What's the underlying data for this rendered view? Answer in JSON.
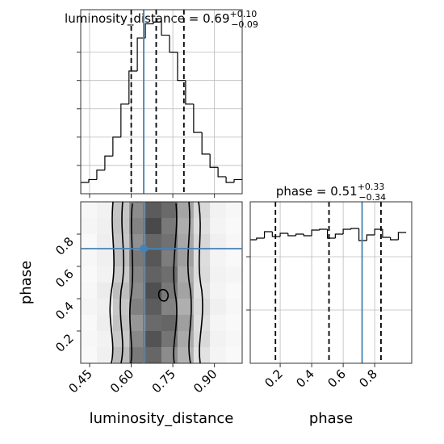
{
  "chart_data": [
    {
      "type": "histogram",
      "title": "luminosity_distance = 0.69",
      "title_sup": "+0.10",
      "title_sub": "−0.09",
      "bins": [
        0.418,
        0.447,
        0.476,
        0.505,
        0.534,
        0.563,
        0.592,
        0.622,
        0.651,
        0.68,
        0.709,
        0.738,
        0.767,
        0.796,
        0.825,
        0.855,
        0.884,
        0.913,
        0.942,
        0.971,
        1.0
      ],
      "values": [
        12,
        15,
        25,
        40,
        60,
        95,
        130,
        165,
        180,
        182,
        168,
        150,
        120,
        95,
        65,
        42,
        28,
        18,
        12,
        15
      ],
      "color": "#000000",
      "xlim": [
        0.418,
        1.0
      ],
      "ylim": [
        0,
        195
      ],
      "yticks": [
        30,
        60,
        90,
        120,
        150
      ],
      "quantiles": [
        0.6,
        0.69,
        0.79
      ],
      "truth": 0.645,
      "truth_color": "#4682b4",
      "grid": true
    },
    {
      "type": "hist2d",
      "xbins": [
        0.418,
        0.476,
        0.534,
        0.593,
        0.651,
        0.709,
        0.767,
        0.825,
        0.884,
        0.942,
        1.0
      ],
      "ybins": [
        0,
        0.1,
        0.2,
        0.3,
        0.4,
        0.5,
        0.6,
        0.7,
        0.8,
        0.9,
        1.0
      ],
      "z": [
        [
          0.03,
          0.08,
          0.35,
          0.7,
          0.8,
          0.6,
          0.4,
          0.15,
          0.06,
          0.03
        ],
        [
          0.04,
          0.07,
          0.28,
          0.62,
          0.9,
          0.72,
          0.45,
          0.2,
          0.07,
          0.04
        ],
        [
          0.03,
          0.09,
          0.32,
          0.55,
          0.78,
          0.8,
          0.5,
          0.17,
          0.05,
          0.03
        ],
        [
          0.05,
          0.08,
          0.3,
          0.66,
          0.85,
          0.65,
          0.42,
          0.2,
          0.08,
          0.04
        ],
        [
          0.04,
          0.1,
          0.34,
          0.6,
          0.92,
          0.7,
          0.48,
          0.16,
          0.06,
          0.03
        ],
        [
          0.03,
          0.07,
          0.27,
          0.64,
          0.82,
          0.76,
          0.44,
          0.19,
          0.07,
          0.05
        ],
        [
          0.04,
          0.08,
          0.33,
          0.7,
          0.88,
          0.68,
          0.5,
          0.18,
          0.06,
          0.03
        ],
        [
          0.03,
          0.09,
          0.29,
          0.58,
          0.8,
          0.74,
          0.46,
          0.21,
          0.08,
          0.04
        ],
        [
          0.05,
          0.08,
          0.31,
          0.65,
          0.95,
          0.7,
          0.43,
          0.17,
          0.06,
          0.03
        ],
        [
          0.04,
          0.07,
          0.3,
          0.6,
          0.86,
          0.78,
          0.47,
          0.2,
          0.07,
          0.04
        ]
      ],
      "color": "#000000",
      "xlim": [
        0.418,
        1.0
      ],
      "ylim": [
        0,
        1.0
      ],
      "xticks": [
        0.45,
        {
          "value": 0.6,
          "label": "0.60"
        },
        0.75,
        {
          "value": 0.9,
          "label": "0.90"
        }
      ],
      "yticks": [
        0.2,
        0.4,
        0.6,
        0.8
      ],
      "xlabel": "luminosity_distance",
      "ylabel": "phase",
      "truth_x": 0.645,
      "truth_y": 0.71,
      "truth_color": "#4682b4"
    },
    {
      "type": "histogram",
      "title": "phase = 0.51",
      "title_sup": "+0.33",
      "title_sub": "−0.34",
      "bins": [
        0,
        0.05,
        0.1,
        0.15,
        0.2,
        0.25,
        0.3,
        0.35,
        0.4,
        0.45,
        0.5,
        0.55,
        0.6,
        0.65,
        0.7,
        0.75,
        0.8,
        0.85,
        0.9,
        0.95,
        1.0
      ],
      "values": [
        153,
        155,
        163,
        157,
        161,
        158,
        160,
        158,
        165,
        166,
        155,
        160,
        166,
        167,
        152,
        159,
        166,
        156,
        153,
        162
      ],
      "color": "#000000",
      "xlim": [
        0.01,
        1.035
      ],
      "ylim": [
        0,
        200
      ],
      "xticks": [
        0.2,
        0.4,
        0.6,
        0.8
      ],
      "yticks": [
        66,
        132
      ],
      "quantiles": [
        0.17,
        0.51,
        0.84
      ],
      "truth": 0.72,
      "truth_color": "#4682b4",
      "xlabel": "phase",
      "grid": true
    }
  ]
}
